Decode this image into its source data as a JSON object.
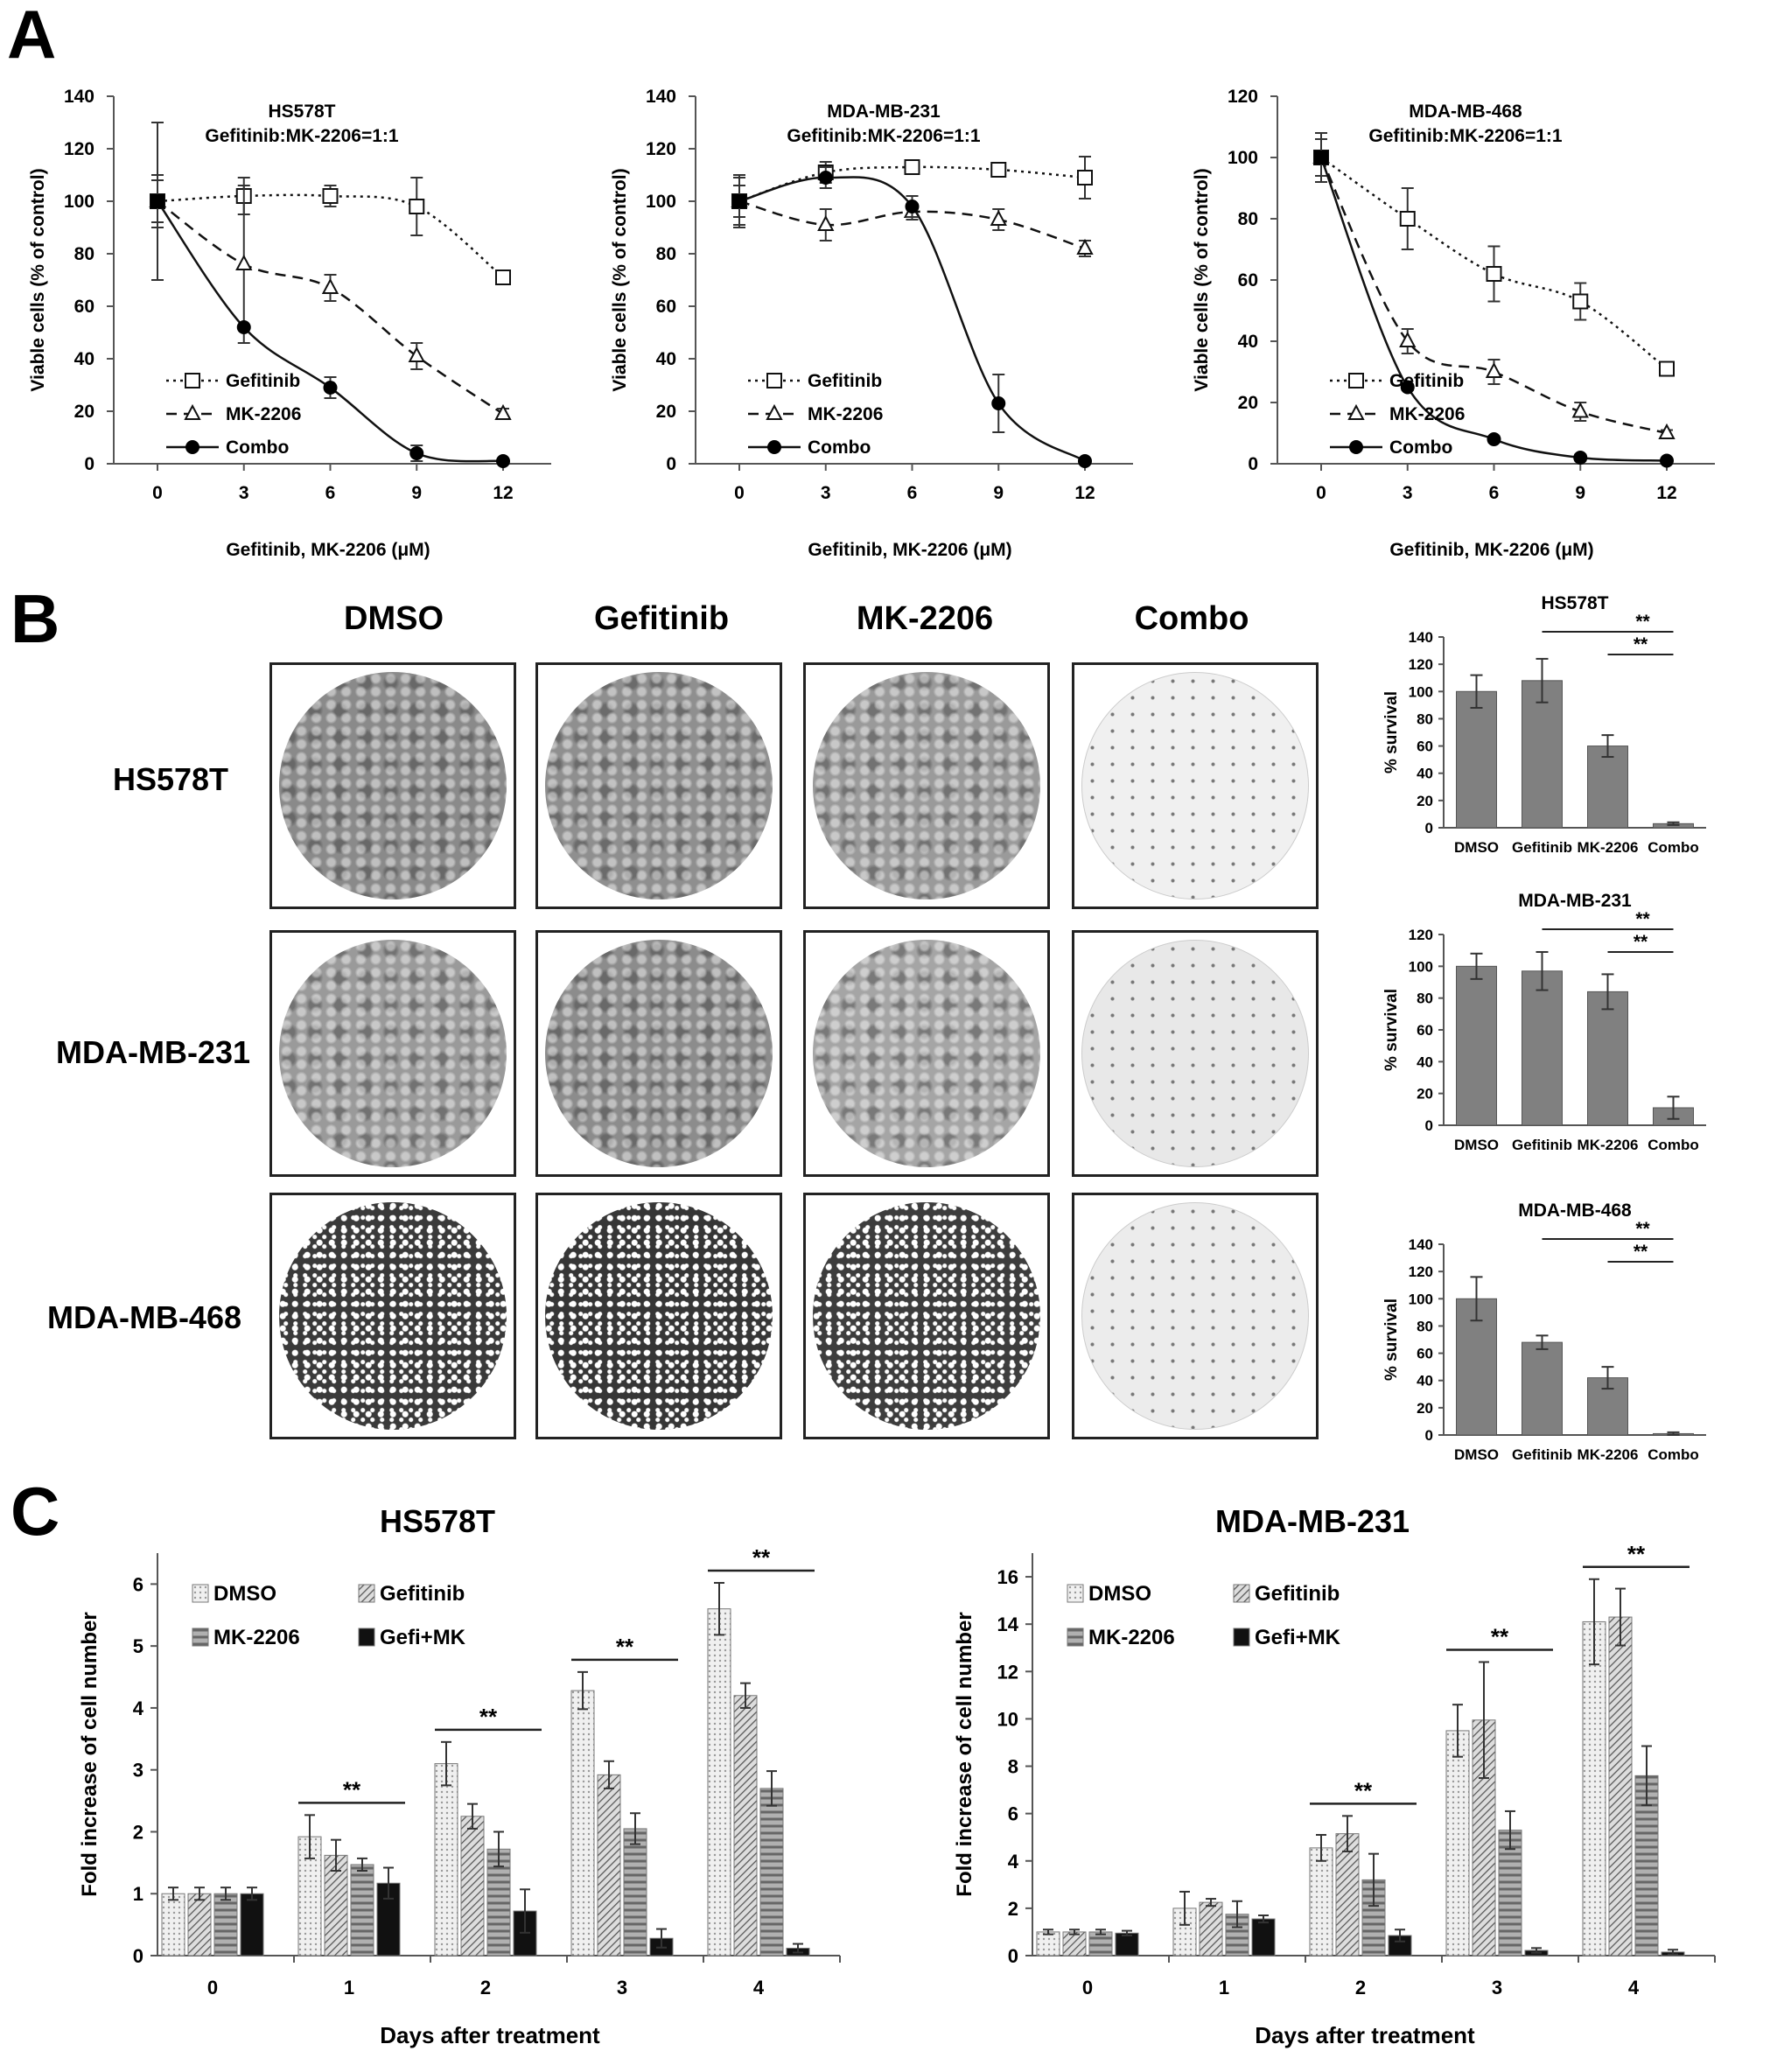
{
  "panels": {
    "A": "A",
    "B": "B",
    "C": "C"
  },
  "panelA": [
    {
      "title": "HS578T",
      "subtitle": "Gefitinib:MK-2206=1:1",
      "ylabel": "Viable cells (% of control)",
      "xlabel": "Gefitinib, MK-2206 (μM)",
      "yticks": [
        "0",
        "20",
        "40",
        "60",
        "80",
        "100",
        "120",
        "140"
      ],
      "xticks": [
        "0",
        "3",
        "6",
        "9",
        "12"
      ],
      "legend": [
        "Gefitinib",
        "MK-2206",
        "Combo"
      ]
    },
    {
      "title": "MDA-MB-231",
      "subtitle": "Gefitinib:MK-2206=1:1",
      "ylabel": "Viable cells (% of control)",
      "xlabel": "Gefitinib, MK-2206 (μM)",
      "yticks": [
        "0",
        "20",
        "40",
        "60",
        "80",
        "100",
        "120",
        "140"
      ],
      "xticks": [
        "0",
        "3",
        "6",
        "9",
        "12"
      ],
      "legend": [
        "Gefitinib",
        "MK-2206",
        "Combo"
      ]
    },
    {
      "title": "MDA-MB-468",
      "subtitle": "Gefitinib:MK-2206=1:1",
      "ylabel": "Viable cells (% of control)",
      "xlabel": "Gefitinib, MK-2206 (μM)",
      "yticks": [
        "0",
        "20",
        "40",
        "60",
        "80",
        "100",
        "120"
      ],
      "xticks": [
        "0",
        "3",
        "6",
        "9",
        "12"
      ],
      "legend": [
        "Gefitinib",
        "MK-2206",
        "Combo"
      ]
    }
  ],
  "panelB": {
    "columns": [
      "DMSO",
      "Gefitinib",
      "MK-2206",
      "Combo"
    ],
    "rows": [
      "HS578T",
      "MDA-MB-231",
      "MDA-MB-468"
    ],
    "plates": [
      [
        "#8a8a8a",
        "#8f8f8f",
        "#9a9a9a",
        "#f0f0f0"
      ],
      [
        "#9a9a9a",
        "#8c8c8c",
        "#a5a5a5",
        "#e8e8e8"
      ],
      [
        "#3a3a3a",
        "#363636",
        "#3d3d3d",
        "#ececec"
      ]
    ],
    "bar_charts": [
      {
        "title": "HS578T",
        "ylabel": "% survival",
        "yticks": [
          "0",
          "20",
          "40",
          "60",
          "80",
          "100",
          "120",
          "140"
        ],
        "categories": [
          "DMSO",
          "Gefitinib",
          "MK-2206",
          "Combo"
        ],
        "sig": [
          "**",
          "**"
        ]
      },
      {
        "title": "MDA-MB-231",
        "ylabel": "% survival",
        "yticks": [
          "0",
          "20",
          "40",
          "60",
          "80",
          "100",
          "120"
        ],
        "categories": [
          "DMSO",
          "Gefitinib",
          "MK-2206",
          "Combo"
        ],
        "sig": [
          "**",
          "**"
        ]
      },
      {
        "title": "MDA-MB-468",
        "ylabel": "% survival",
        "yticks": [
          "0",
          "20",
          "40",
          "60",
          "80",
          "100",
          "120",
          "140"
        ],
        "categories": [
          "DMSO",
          "Gefitinib",
          "MK-2206",
          "Combo"
        ],
        "sig": [
          "**",
          "**"
        ]
      }
    ]
  },
  "panelC": [
    {
      "title": "HS578T",
      "ylabel": "Fold increase of cell number",
      "xlabel": "Days after treatment",
      "yticks": [
        "0",
        "1",
        "2",
        "3",
        "4",
        "5",
        "6"
      ],
      "xticks": [
        "0",
        "1",
        "2",
        "3",
        "4"
      ],
      "legend": [
        "DMSO",
        "Gefitinib",
        "MK-2206",
        "Gefi+MK"
      ],
      "sig": "**"
    },
    {
      "title": "MDA-MB-231",
      "ylabel": "Fold increase of cell number",
      "xlabel": "Days after treatment",
      "yticks": [
        "0",
        "2",
        "4",
        "6",
        "8",
        "10",
        "12",
        "14",
        "16"
      ],
      "xticks": [
        "0",
        "1",
        "2",
        "3",
        "4"
      ],
      "legend": [
        "DMSO",
        "Gefitinib",
        "MK-2206",
        "Gefi+MK"
      ],
      "sig": "**"
    }
  ],
  "chart_data": [
    {
      "type": "line",
      "title": "HS578T",
      "subtitle": "Gefitinib:MK-2206=1:1",
      "xlabel": "Gefitinib, MK-2206 (μM)",
      "ylabel": "Viable cells (% of control)",
      "ylim": [
        0,
        140
      ],
      "x": [
        0,
        3,
        6,
        9,
        12
      ],
      "series": [
        {
          "name": "Gefitinib",
          "values": [
            100,
            102,
            102,
            98,
            71
          ],
          "err": [
            10,
            7,
            4,
            11,
            0
          ]
        },
        {
          "name": "MK-2206",
          "values": [
            100,
            76,
            67,
            41,
            19
          ],
          "err": [
            8,
            30,
            5,
            5,
            2
          ]
        },
        {
          "name": "Combo",
          "values": [
            100,
            52,
            29,
            4,
            1
          ],
          "err": [
            30,
            0,
            4,
            3,
            1
          ]
        }
      ]
    },
    {
      "type": "line",
      "title": "MDA-MB-231",
      "subtitle": "Gefitinib:MK-2206=1:1",
      "xlabel": "Gefitinib, MK-2206 (μM)",
      "ylabel": "Viable cells (% of control)",
      "ylim": [
        0,
        140
      ],
      "x": [
        0,
        3,
        6,
        9,
        12
      ],
      "series": [
        {
          "name": "Gefitinib",
          "values": [
            100,
            111,
            113,
            112,
            109
          ],
          "err": [
            10,
            4,
            2,
            2,
            8
          ]
        },
        {
          "name": "MK-2206",
          "values": [
            100,
            91,
            96,
            93,
            82
          ],
          "err": [
            6,
            6,
            3,
            4,
            3
          ]
        },
        {
          "name": "Combo",
          "values": [
            100,
            109,
            98,
            23,
            1
          ],
          "err": [
            9,
            4,
            4,
            11,
            1
          ]
        }
      ]
    },
    {
      "type": "line",
      "title": "MDA-MB-468",
      "subtitle": "Gefitinib:MK-2206=1:1",
      "xlabel": "Gefitinib, MK-2206 (μM)",
      "ylabel": "Viable cells (% of control)",
      "ylim": [
        0,
        120
      ],
      "x": [
        0,
        3,
        6,
        9,
        12
      ],
      "series": [
        {
          "name": "Gefitinib",
          "values": [
            100,
            80,
            62,
            53,
            31
          ],
          "err": [
            8,
            10,
            9,
            6,
            1
          ]
        },
        {
          "name": "MK-2206",
          "values": [
            100,
            40,
            30,
            17,
            10
          ],
          "err": [
            6,
            4,
            4,
            3,
            1
          ]
        },
        {
          "name": "Combo",
          "values": [
            100,
            25,
            8,
            2,
            1
          ],
          "err": [
            8,
            1,
            1,
            1,
            0
          ]
        }
      ]
    },
    {
      "type": "bar",
      "title": "HS578T",
      "ylabel": "% survival",
      "ylim": [
        0,
        140
      ],
      "categories": [
        "DMSO",
        "Gefitinib",
        "MK-2206",
        "Combo"
      ],
      "values": [
        100,
        108,
        60,
        3
      ],
      "err": [
        12,
        16,
        8,
        1
      ]
    },
    {
      "type": "bar",
      "title": "MDA-MB-231",
      "ylabel": "% survival",
      "ylim": [
        0,
        120
      ],
      "categories": [
        "DMSO",
        "Gefitinib",
        "MK-2206",
        "Combo"
      ],
      "values": [
        100,
        97,
        84,
        11
      ],
      "err": [
        8,
        12,
        11,
        7
      ]
    },
    {
      "type": "bar",
      "title": "MDA-MB-468",
      "ylabel": "% survival",
      "ylim": [
        0,
        140
      ],
      "categories": [
        "DMSO",
        "Gefitinib",
        "MK-2206",
        "Combo"
      ],
      "values": [
        100,
        68,
        42,
        1
      ],
      "err": [
        16,
        5,
        8,
        1
      ]
    },
    {
      "type": "bar",
      "title": "HS578T",
      "xlabel": "Days after treatment",
      "ylabel": "Fold increase of cell number",
      "ylim": [
        0,
        6.5
      ],
      "categories": [
        "0",
        "1",
        "2",
        "3",
        "4"
      ],
      "series": [
        {
          "name": "DMSO",
          "values": [
            1.0,
            1.92,
            3.1,
            4.28,
            5.6
          ],
          "err": [
            0.1,
            0.35,
            0.35,
            0.3,
            0.42
          ]
        },
        {
          "name": "Gefitinib",
          "values": [
            1.0,
            1.62,
            2.25,
            2.92,
            4.2
          ],
          "err": [
            0.1,
            0.25,
            0.2,
            0.22,
            0.2
          ]
        },
        {
          "name": "MK-2206",
          "values": [
            1.0,
            1.47,
            1.72,
            2.05,
            2.7
          ],
          "err": [
            0.1,
            0.1,
            0.28,
            0.25,
            0.28
          ]
        },
        {
          "name": "Gefi+MK",
          "values": [
            1.0,
            1.17,
            0.72,
            0.28,
            0.12
          ],
          "err": [
            0.1,
            0.25,
            0.35,
            0.15,
            0.07
          ]
        }
      ]
    },
    {
      "type": "bar",
      "title": "MDA-MB-231",
      "xlabel": "Days after treatment",
      "ylabel": "Fold increase of cell number",
      "ylim": [
        0,
        17
      ],
      "categories": [
        "0",
        "1",
        "2",
        "3",
        "4"
      ],
      "series": [
        {
          "name": "DMSO",
          "values": [
            1.0,
            2.0,
            4.55,
            9.5,
            14.1
          ],
          "err": [
            0.1,
            0.7,
            0.55,
            1.1,
            1.8
          ]
        },
        {
          "name": "Gefitinib",
          "values": [
            1.0,
            2.25,
            5.15,
            9.95,
            14.3
          ],
          "err": [
            0.1,
            0.15,
            0.75,
            2.45,
            1.2
          ]
        },
        {
          "name": "MK-2206",
          "values": [
            1.0,
            1.75,
            3.2,
            5.3,
            7.6
          ],
          "err": [
            0.1,
            0.55,
            1.1,
            0.8,
            1.25
          ]
        },
        {
          "name": "Gefi+MK",
          "values": [
            0.95,
            1.55,
            0.85,
            0.22,
            0.15
          ],
          "err": [
            0.1,
            0.15,
            0.25,
            0.1,
            0.1
          ]
        }
      ]
    }
  ]
}
